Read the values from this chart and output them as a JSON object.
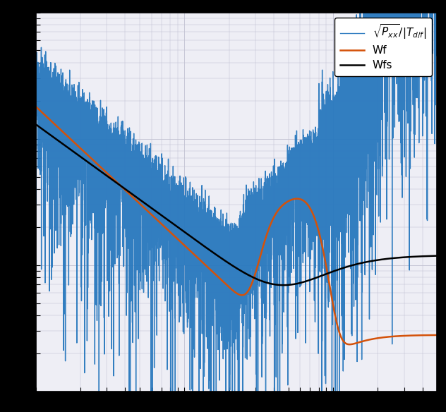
{
  "legend_labels": [
    "$\\sqrt{P_{xx}}/|T_{d/f}|$",
    "Wf",
    "Wfs"
  ],
  "color_blue": "#2878be",
  "color_orange": "#d4520a",
  "color_black": "#000000",
  "lw_blue": 1.0,
  "lw_orange": 1.8,
  "lw_black": 1.8,
  "xlim": [
    1,
    500
  ],
  "ylim": [
    0.001,
    1.0
  ],
  "grid_color": "#c0c0d0",
  "bg_color": "#eeeef5",
  "outer_bg": "#000000",
  "figsize": [
    6.32,
    5.84
  ],
  "dpi": 100,
  "legend_fontsize": 11,
  "legend_loc": "upper right"
}
